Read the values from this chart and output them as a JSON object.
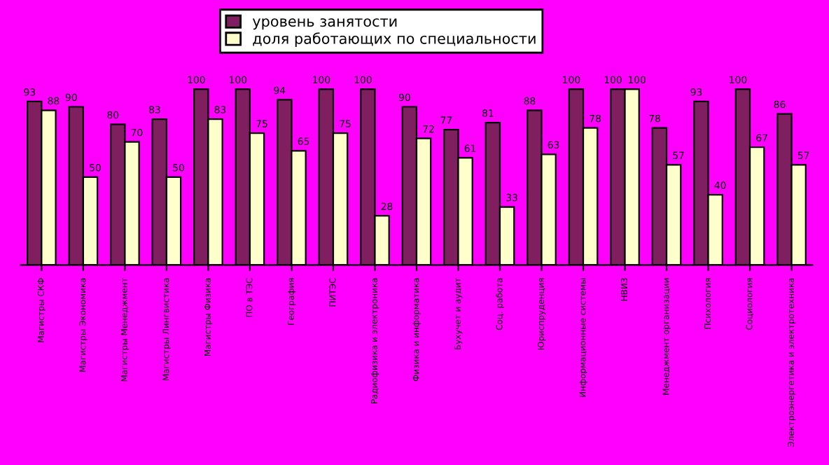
{
  "chart_data": {
    "type": "bar",
    "categories": [
      "Магистры СКФ",
      "Магистры Экономика",
      "Магистры Менеджмент",
      "Магистры Лингвистика",
      "Магистры Физика",
      "ПО в ТЭС",
      "География",
      "ПИТЭС",
      "Радиофизика и электроника",
      "Физика и информатика",
      "Бухучет и аудит",
      "Соц. работа",
      "Юриспруденция",
      "Информационные системы",
      "НВИЗ",
      "Менеджмент организации",
      "Психология",
      "Социология",
      "Электроэнергетика и электротехника"
    ],
    "series": [
      {
        "name": "уровень занятости",
        "color": "#7f1f5f",
        "values": [
          93,
          90,
          80,
          83,
          100,
          100,
          94,
          100,
          100,
          90,
          77,
          81,
          88,
          100,
          100,
          78,
          93,
          100,
          86
        ]
      },
      {
        "name": "доля работающих по специальности",
        "color": "#ffffcc",
        "values": [
          88,
          50,
          70,
          50,
          83,
          75,
          65,
          75,
          28,
          72,
          61,
          33,
          63,
          78,
          100,
          57,
          40,
          67,
          57
        ]
      }
    ],
    "data_labels": true,
    "legend": "top",
    "grid": false
  }
}
